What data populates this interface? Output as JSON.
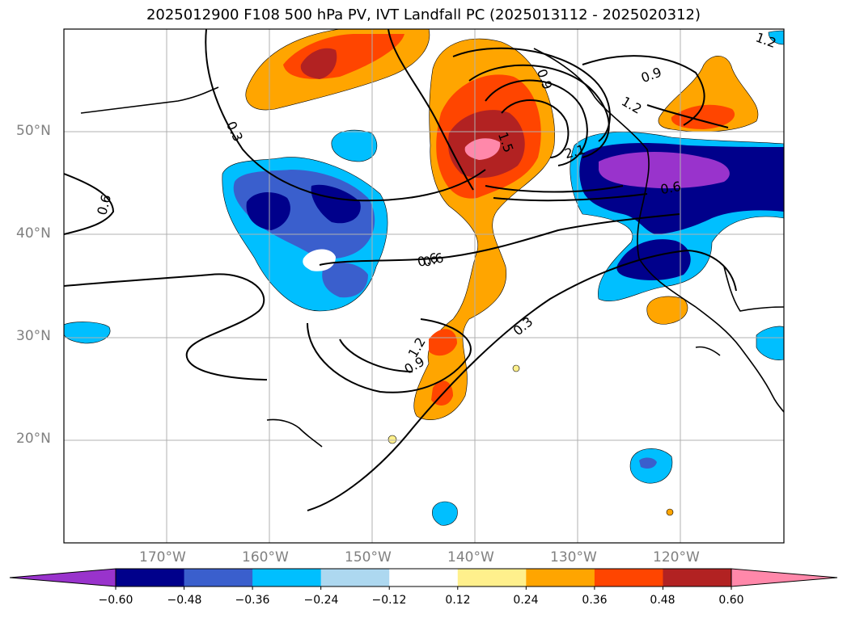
{
  "title": "2025012900 F108 500 hPa PV, IVT Landfall PC (2025013112 - 2025020312)",
  "map": {
    "lon_range": [
      -180,
      -110
    ],
    "lat_range": [
      10,
      60
    ],
    "lat_labels": [
      "50°N",
      "40°N",
      "30°N",
      "20°N"
    ],
    "lon_labels": [
      "170°W",
      "160°W",
      "150°W",
      "140°W",
      "130°W",
      "120°W"
    ],
    "contour_labels": [
      "0.3",
      "0.6",
      "0.6",
      "0.9",
      "1.2",
      "1.5",
      "2.1",
      "0.9",
      "1.2",
      "0.6",
      "0.6",
      "0.3",
      "0.9",
      "1.2"
    ]
  },
  "colorbar": {
    "ticks": [
      "−0.60",
      "−0.48",
      "−0.36",
      "−0.24",
      "−0.12",
      "0.12",
      "0.24",
      "0.36",
      "0.48",
      "0.60"
    ],
    "colors": [
      "#9933cc",
      "#00008b",
      "#3a5fcd",
      "#00bfff",
      "#add8f0",
      "#ffffff",
      "#fff08c",
      "#ffa500",
      "#ff4500",
      "#b22222",
      "#ff88aa",
      "#ff88aa"
    ],
    "under_color": "#9933cc",
    "over_color": "#ff88aa"
  }
}
